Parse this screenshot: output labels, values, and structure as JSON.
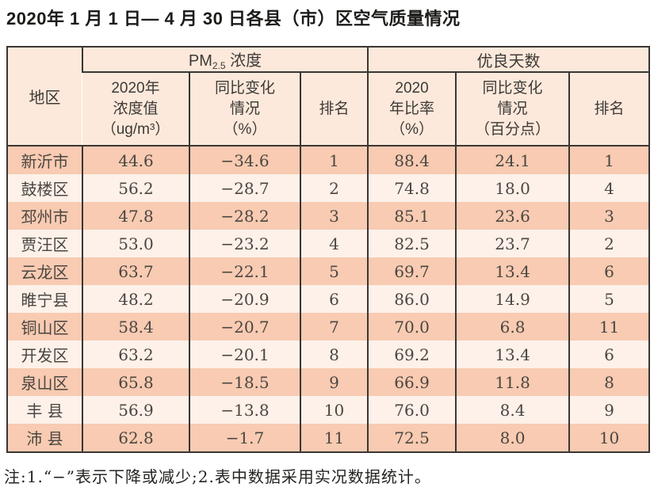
{
  "page": {
    "title": "2020年 1 月 1 日— 4 月 30 日各县（市）区空气质量情况",
    "footnote": "注:1.“−”表示下降或减少;2.表中数据采用实况数据统计。"
  },
  "table": {
    "region_header": "地区",
    "pm_group": {
      "base": "PM",
      "sub": "2.5",
      "suffix": " 浓度"
    },
    "days_group": "优良天数",
    "sub_headers": {
      "pm_value": "2020年\n浓度值\n（ug/m³）",
      "pm_change": "同比变化\n情况\n（%）",
      "pm_rank": "排名",
      "days_ratio": "2020\n年比率\n（%）",
      "days_change": "同比变化\n情况\n（百分点）",
      "days_rank": "排名"
    },
    "row_fields": [
      "region",
      "pm_value",
      "pm_change",
      "pm_rank",
      "days_ratio",
      "days_change",
      "days_rank"
    ],
    "rows": [
      {
        "region": "新沂市",
        "pm_value": "44.6",
        "pm_change": "−34.6",
        "pm_rank": "1",
        "days_ratio": "88.4",
        "days_change": "24.1",
        "days_rank": "1"
      },
      {
        "region": "鼓楼区",
        "pm_value": "56.2",
        "pm_change": "−28.7",
        "pm_rank": "2",
        "days_ratio": "74.8",
        "days_change": "18.0",
        "days_rank": "4"
      },
      {
        "region": "邳州市",
        "pm_value": "47.8",
        "pm_change": "−28.2",
        "pm_rank": "3",
        "days_ratio": "85.1",
        "days_change": "23.6",
        "days_rank": "3"
      },
      {
        "region": "贾汪区",
        "pm_value": "53.0",
        "pm_change": "−23.2",
        "pm_rank": "4",
        "days_ratio": "82.5",
        "days_change": "23.7",
        "days_rank": "2"
      },
      {
        "region": "云龙区",
        "pm_value": "63.7",
        "pm_change": "−22.1",
        "pm_rank": "5",
        "days_ratio": "69.7",
        "days_change": "13.4",
        "days_rank": "6"
      },
      {
        "region": "睢宁县",
        "pm_value": "48.2",
        "pm_change": "−20.9",
        "pm_rank": "6",
        "days_ratio": "86.0",
        "days_change": "14.9",
        "days_rank": "5"
      },
      {
        "region": "铜山区",
        "pm_value": "58.4",
        "pm_change": "−20.7",
        "pm_rank": "7",
        "days_ratio": "70.0",
        "days_change": "6.8",
        "days_rank": "11"
      },
      {
        "region": "开发区",
        "pm_value": "63.2",
        "pm_change": "−20.1",
        "pm_rank": "8",
        "days_ratio": "69.2",
        "days_change": "13.4",
        "days_rank": "6"
      },
      {
        "region": "泉山区",
        "pm_value": "65.8",
        "pm_change": "−18.5",
        "pm_rank": "9",
        "days_ratio": "66.9",
        "days_change": "11.8",
        "days_rank": "8"
      },
      {
        "region": "丰 县",
        "pm_value": "56.9",
        "pm_change": "−13.8",
        "pm_rank": "10",
        "days_ratio": "76.0",
        "days_change": "8.4",
        "days_rank": "9"
      },
      {
        "region": "沛 县",
        "pm_value": "62.8",
        "pm_change": "−1.7",
        "pm_rank": "11",
        "days_ratio": "72.5",
        "days_change": "8.0",
        "days_rank": "10"
      }
    ]
  },
  "colors": {
    "header_bg": "#fce9db",
    "row_odd_bg": "#f8cbb2",
    "row_even_bg": "#fdf1ea",
    "border": "#3a3633",
    "title_text": "#1d1b19",
    "data_text": "#4b4641"
  }
}
